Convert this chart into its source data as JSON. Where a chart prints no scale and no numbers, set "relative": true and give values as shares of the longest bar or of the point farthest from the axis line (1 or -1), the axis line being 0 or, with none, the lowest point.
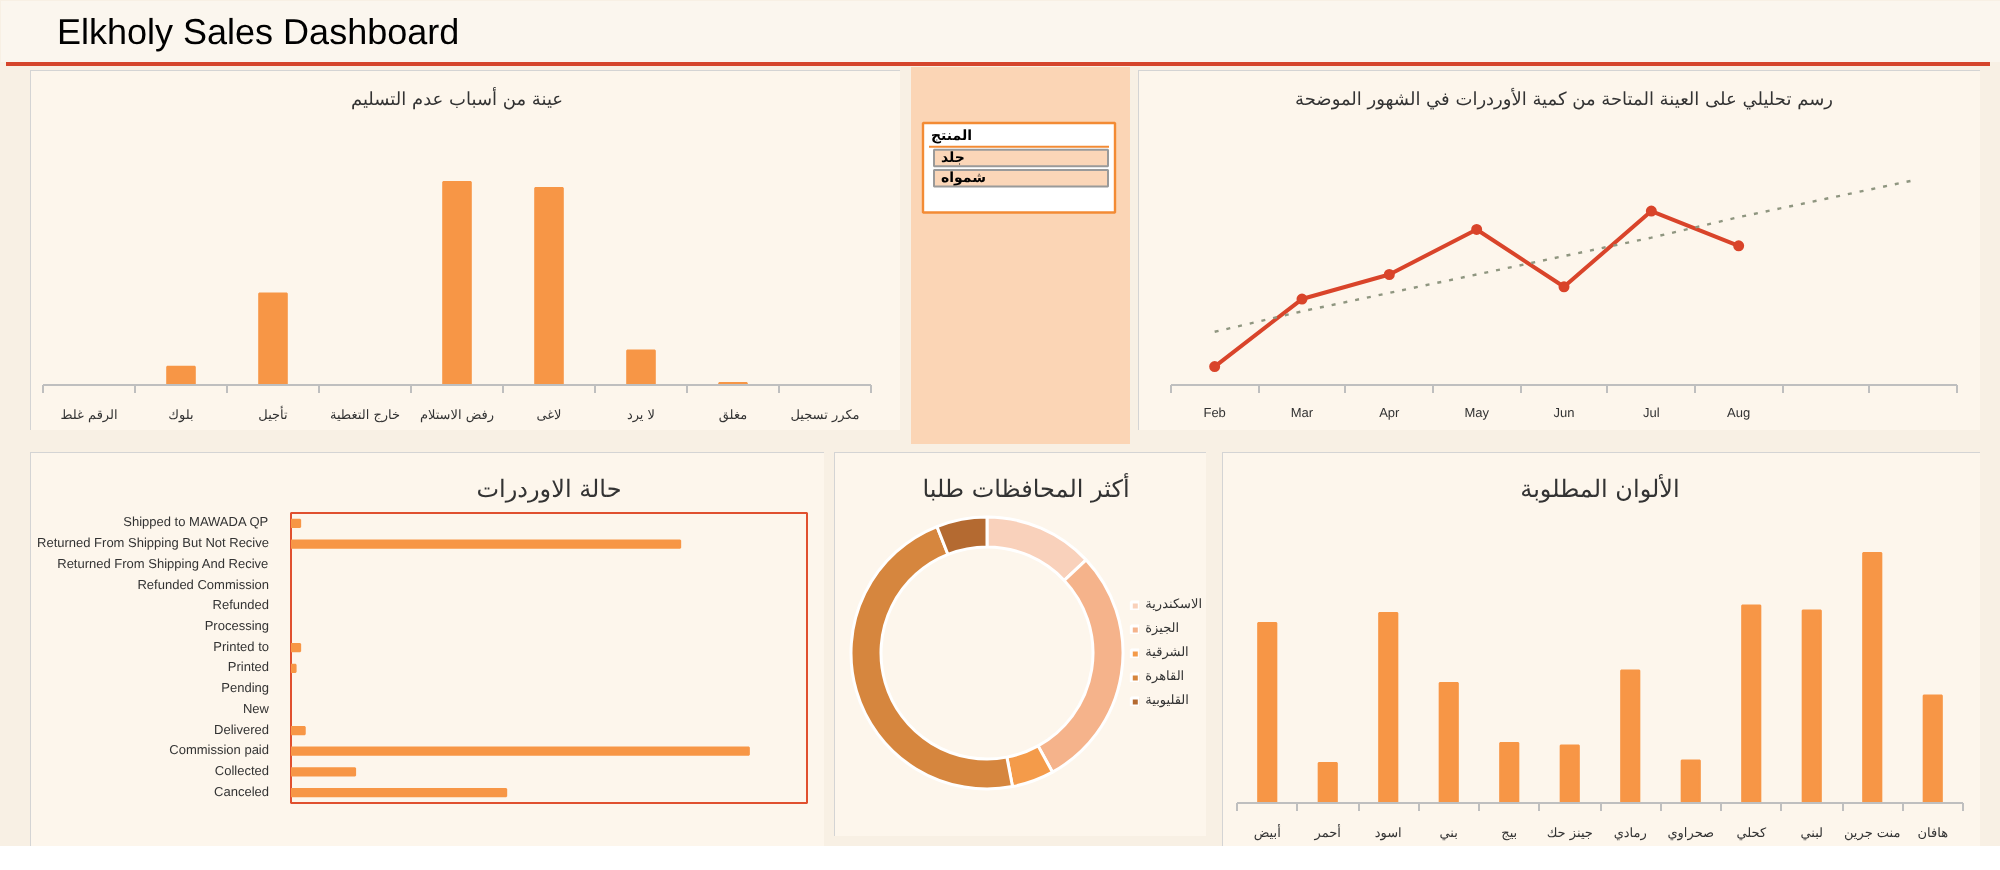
{
  "chart_data": [
    {
      "type": "other",
      "title": "Elkholy Sales Dashboard"
    },
    {
      "type": "bar",
      "title": "عينة من أسباب عدم التسليم",
      "categories": [
        "الرقم غلط",
        "بلوك",
        "تأجيل",
        "خارج التغطية",
        "رفض الاستلام",
        "لاغى",
        "لا يرد",
        "مغلق",
        "مكرر تسجيل"
      ],
      "values": [
        null,
        0.09,
        0.45,
        null,
        1,
        0.97,
        0.17,
        0.01,
        null
      ],
      "color": "#f79646",
      "relative": true
    },
    {
      "type": "other",
      "title": "المنتج",
      "annotations": [
        "جلد",
        "شمواه"
      ]
    },
    {
      "type": "line",
      "title": "رسم تحليلي على العينة المتاحة من كمية الأوردرات في الشهور الموضحة",
      "categories": [
        "Feb",
        "Mar",
        "Apr",
        "May",
        "Jun",
        "Jul",
        "Aug",
        null,
        null
      ],
      "relative": true,
      "series": [
        {
          "color": "#d9442a",
          "marker": "circle",
          "values": [
            0.09,
            0.42,
            0.54,
            0.76,
            0.48,
            0.85,
            0.68,
            null,
            null
          ]
        },
        {
          "color": "#8f9680",
          "line_style": "dotted",
          "values": [
            0.26,
            0.36,
            0.45,
            0.54,
            0.63,
            0.72,
            0.82,
            0.91,
            1
          ]
        }
      ]
    },
    {
      "type": "bar",
      "orientation": "horizontal",
      "title": "حالة الاوردرات",
      "categories": [
        "Shipped to MAWADA QP",
        "Returned From Shipping But Not Recive",
        "Returned From Shipping And Recive",
        "Refunded Commission",
        "Refunded",
        "Processing",
        "Printed to",
        "Printed",
        "Pending",
        "New",
        "Delivered",
        "Commission paid",
        "Collected",
        "Canceled"
      ],
      "values": [
        0.02,
        0.85,
        null,
        null,
        null,
        null,
        0.02,
        0.01,
        null,
        null,
        0.03,
        1,
        0.14,
        0.47
      ],
      "color": "#f79646",
      "relative": true
    },
    {
      "type": "donut",
      "title": "أكثر المحافظات طلبا",
      "categories": [
        "الاسكندرية",
        "الجيزة",
        "الشرقية",
        "القاهرة",
        "القليوبية"
      ],
      "values": [
        13,
        29,
        5,
        47,
        6
      ],
      "colors": [
        "#f9d1bb",
        "#f5b38b",
        "#f49b4a",
        "#d6863e",
        "#b46a31"
      ],
      "legend": "right"
    },
    {
      "type": "bar",
      "title": "الألوان المطلوبة",
      "categories": [
        "أبيض",
        "أحمر",
        "اسود",
        "بني",
        "بيج",
        "جينز حك",
        "رمادي",
        "صحراوي",
        "كحلي",
        "لبني",
        "منت جرين",
        "هافان"
      ],
      "values": [
        0.72,
        0.16,
        0.76,
        0.48,
        0.24,
        0.23,
        0.53,
        0.17,
        0.79,
        0.77,
        1,
        0.43
      ],
      "color": "#f79646",
      "relative": true
    }
  ]
}
